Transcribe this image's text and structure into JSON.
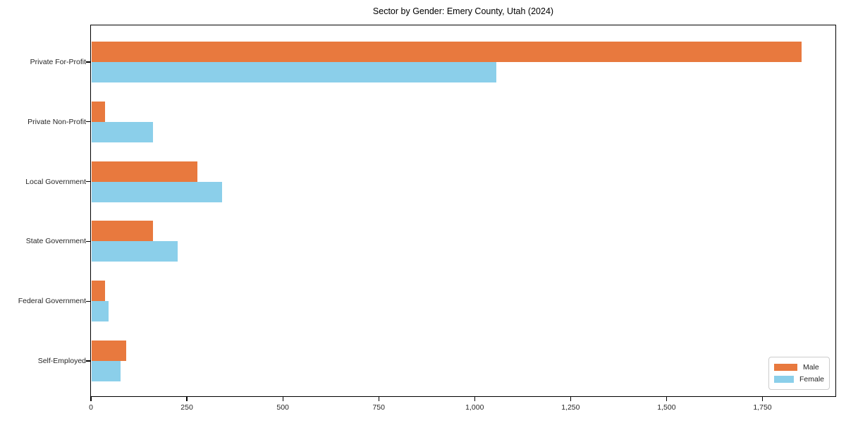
{
  "chart_data": {
    "type": "bar",
    "orientation": "horizontal",
    "title": "Sector by Gender: Emery County, Utah (2024)",
    "categories": [
      "Private For-Profit",
      "Private Non-Profit",
      "Local Government",
      "State Government",
      "Federal Government",
      "Self-Employed"
    ],
    "series": [
      {
        "name": "Male",
        "color": "#e8793e",
        "values": [
          1850,
          35,
          275,
          160,
          35,
          90
        ]
      },
      {
        "name": "Female",
        "color": "#8bcfea",
        "values": [
          1055,
          160,
          340,
          225,
          45,
          75
        ]
      }
    ],
    "x_ticks": {
      "values": [
        0,
        250,
        500,
        750,
        1000,
        1250,
        1500,
        1750
      ],
      "labels": [
        "0",
        "250",
        "500",
        "750",
        "1,000",
        "1,250",
        "1,500",
        "1,750"
      ]
    },
    "xlim": [
      0,
      1942
    ],
    "xlabel": "",
    "ylabel": "",
    "grid": false,
    "legend": {
      "position": "lower right",
      "entries": [
        "Male",
        "Female"
      ]
    }
  }
}
